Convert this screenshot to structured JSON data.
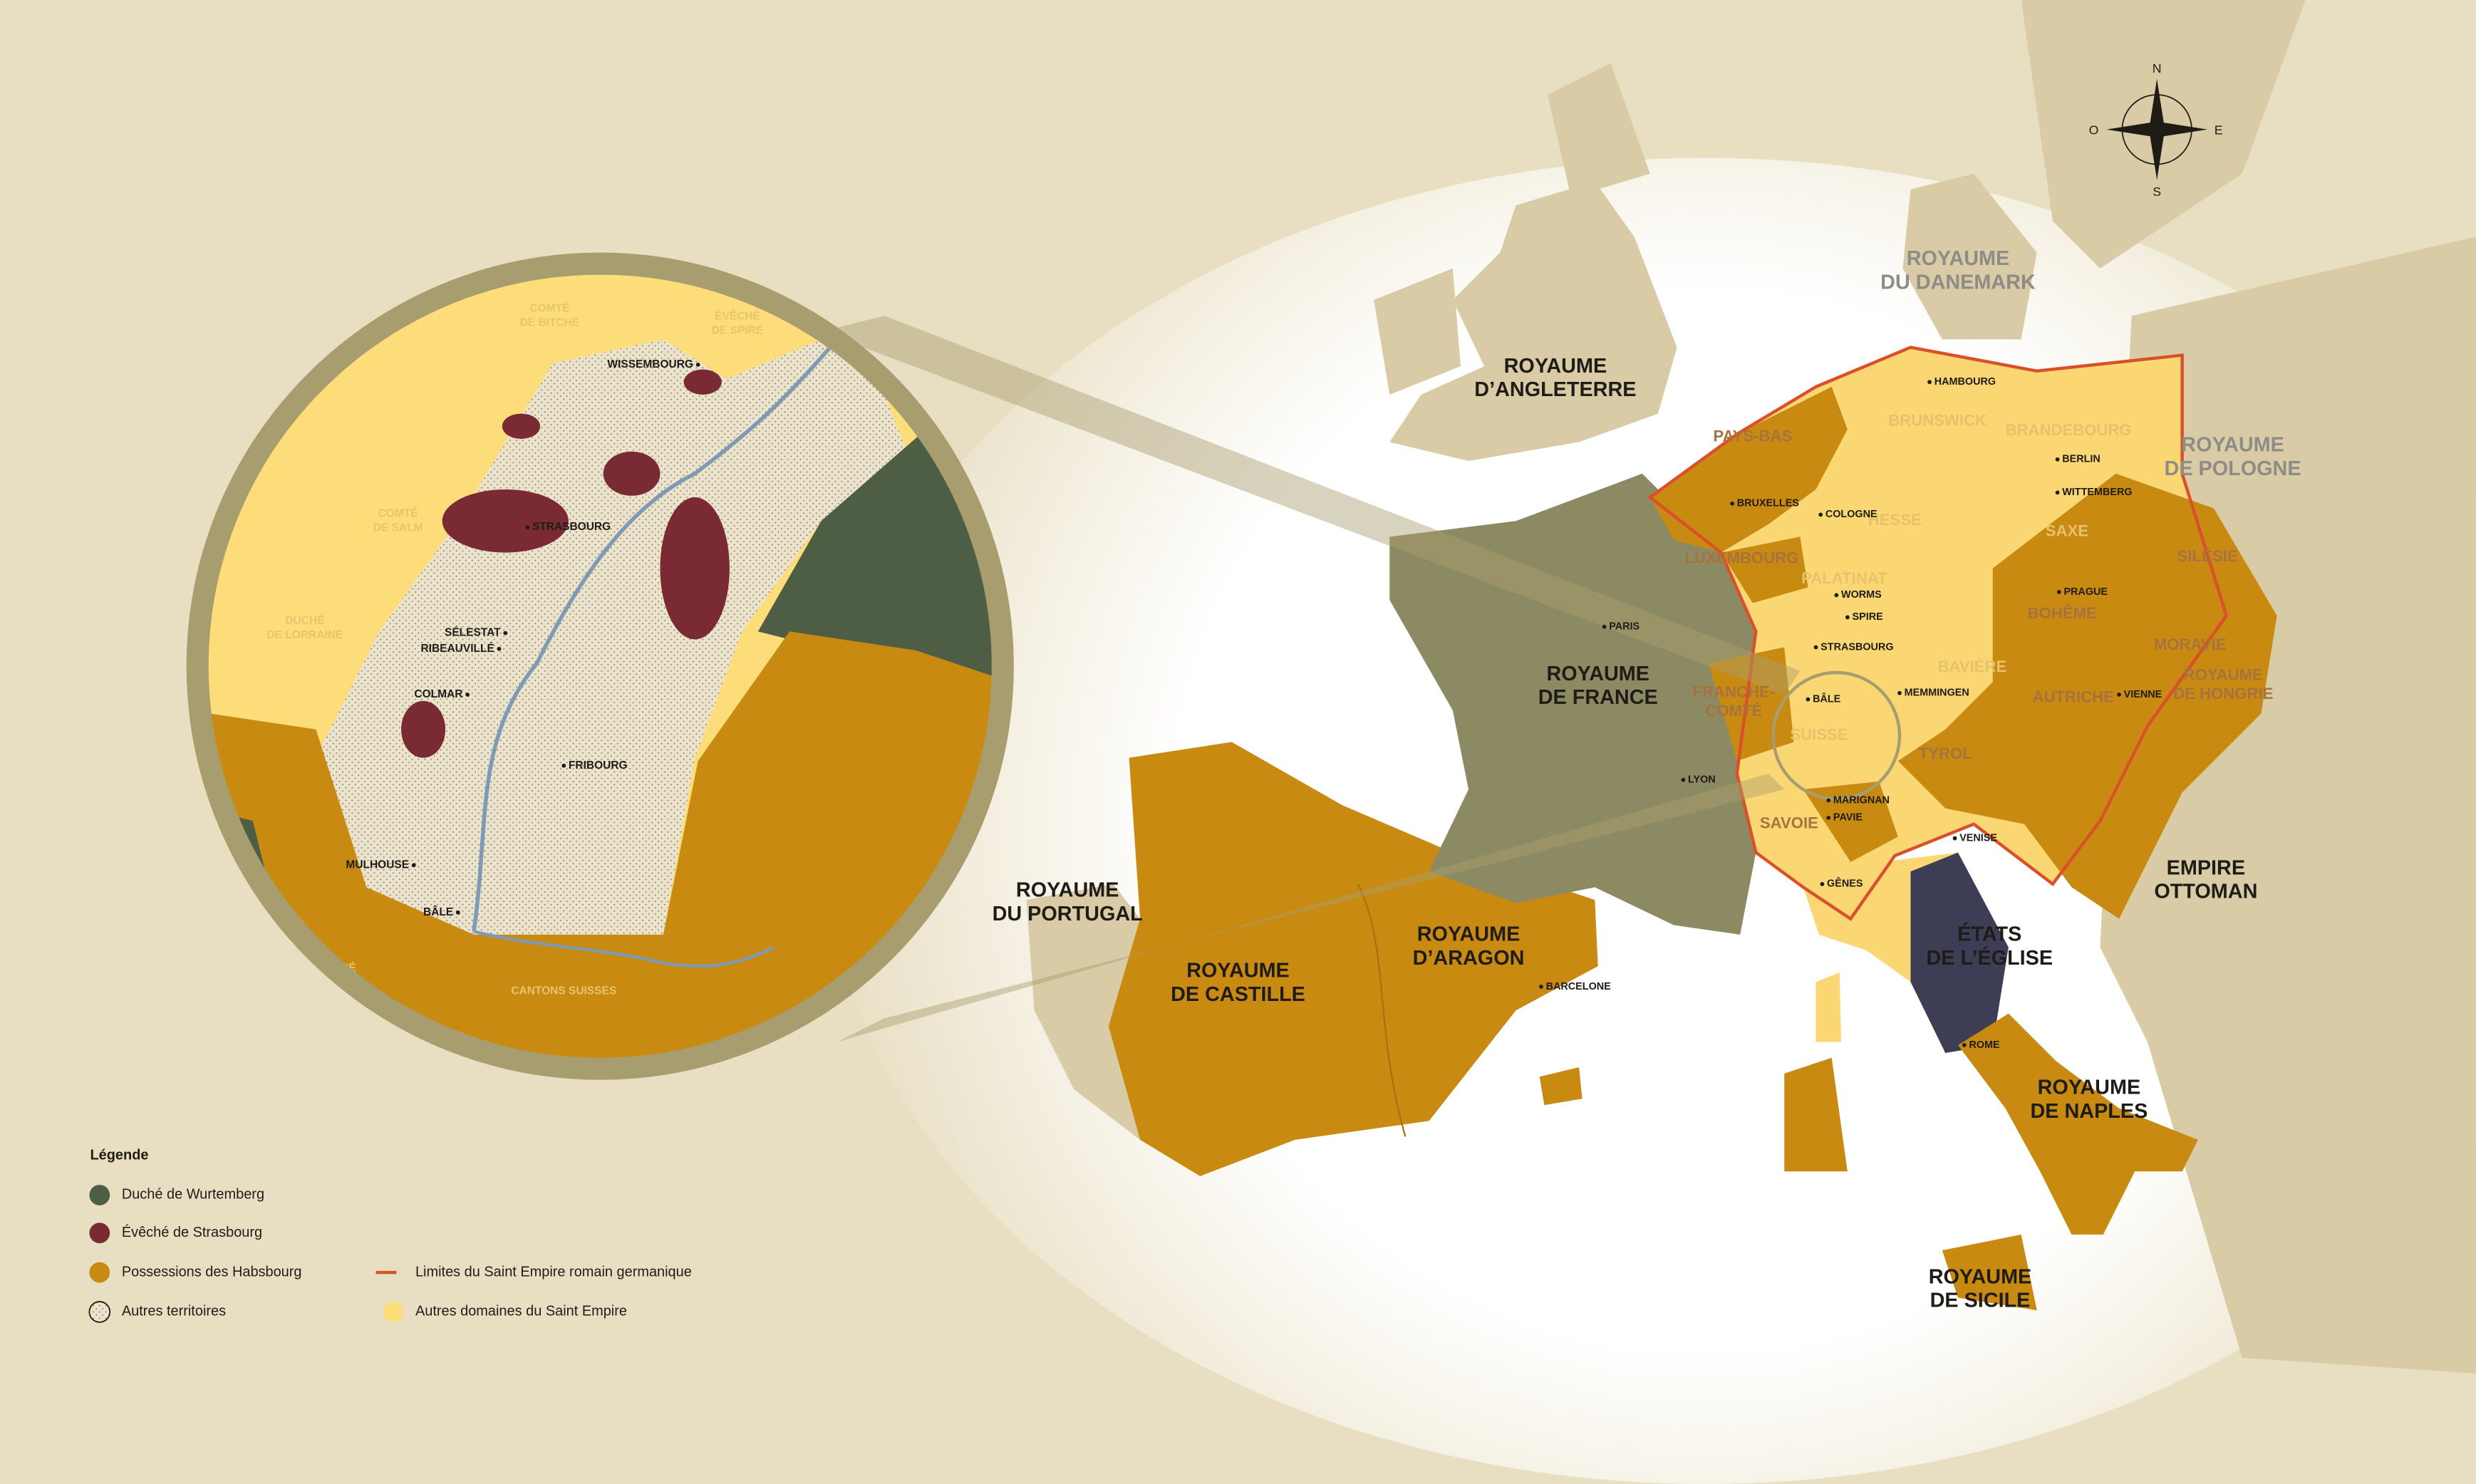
{
  "compass": {
    "north": "N",
    "south": "S",
    "east": "E",
    "west": "O"
  },
  "kingdoms": [
    [
      "ROYAUME",
      "D’ANGLETERRE"
    ],
    [
      "ROYAUME",
      "DE FRANCE"
    ],
    [
      "ROYAUME",
      "DU PORTUGAL"
    ],
    [
      "ROYAUME",
      "DE CASTILLE"
    ],
    [
      "ROYAUME",
      "D’ARAGON"
    ],
    [
      "ÉTATS",
      "DE L’ÉGLISE"
    ],
    [
      "ROYAUME",
      "DE NAPLES"
    ],
    [
      "ROYAUME",
      "DE SICILE"
    ],
    [
      "EMPIRE",
      "OTTOMAN"
    ]
  ],
  "neighbors": [
    [
      "ROYAUME",
      "DU DANEMARK"
    ],
    [
      "ROYAUME",
      "DE POLOGNE"
    ]
  ],
  "habsburg_regions": [
    [
      "PAYS-BAS"
    ],
    [
      "LUXEMBOURG"
    ],
    [
      "FRANCHE-",
      "COMTÉ"
    ],
    [
      "SAVOIE"
    ],
    [
      "TYROL"
    ],
    [
      "AUTRICHE"
    ],
    [
      "BOHÊME"
    ],
    [
      "MORAVIE"
    ],
    [
      "SILÉSIE"
    ],
    [
      "ROYAUME",
      "DE HONGRIE"
    ]
  ],
  "empire_regions": [
    [
      "BRUNSWICK"
    ],
    [
      "BRANDEBOURG"
    ],
    [
      "HESSE"
    ],
    [
      "SAXE"
    ],
    [
      "PALATINAT"
    ],
    [
      "BAVIÈRE"
    ],
    [
      "SUISSE"
    ]
  ],
  "cities": [
    "HAMBOURG",
    "BERLIN",
    "WITTEMBERG",
    "BRUXELLES",
    "COLOGNE",
    "WORMS",
    "SPIRE",
    "STRASBOURG",
    "PRAGUE",
    "BÂLE",
    "MEMMINGEN",
    "VIENNE",
    "PARIS",
    "LYON",
    "MARIGNAN",
    "PAVIE",
    "VENISE",
    "GÊNES",
    "BARCELONE",
    "ROME"
  ],
  "inset": {
    "regions": [
      [
        "COMTÉ",
        "DE BITCHE"
      ],
      [
        "ÉVÊCHÉ",
        "DE SPIRE"
      ],
      [
        "COMTÉ",
        "DE SALM"
      ],
      [
        "DUCHÉ",
        "DE LORRAINE"
      ],
      [
        "ÉVÊCHÉ",
        "DE BÂLE"
      ],
      [
        "CANTONS SUISSES"
      ]
    ],
    "cities": [
      "WISSEMBOURG",
      "STRASBOURG",
      "SÉLESTAT",
      "RIBEAUVILLÉ",
      "COLMAR",
      "FRIBOURG",
      "MULHOUSE",
      "BÂLE"
    ]
  },
  "legend": {
    "title": "Légende",
    "items": [
      "Duché de Wurtemberg",
      "Évêché de Strasbourg",
      "Possessions des Habsbourg",
      "Autres territoires",
      "Limites du Saint Empire romain germanique",
      "Autres domaines du Saint Empire"
    ]
  }
}
